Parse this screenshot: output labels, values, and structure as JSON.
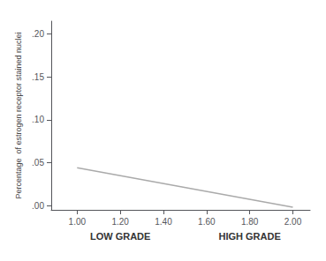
{
  "chart_data": {
    "type": "line",
    "ylabel": "Percentage  of estrogen receptor stained nuclei",
    "x": [
      1.0,
      2.0
    ],
    "values": [
      0.044,
      -0.002
    ],
    "color": "#aaaaaa",
    "xlim": [
      0.88,
      2.08
    ],
    "ylim": [
      -0.005,
      0.215
    ],
    "xticks": [
      {
        "value": 1.0,
        "label": "1.00"
      },
      {
        "value": 1.2,
        "label": "1.20"
      },
      {
        "value": 1.4,
        "label": "1.40"
      },
      {
        "value": 1.6,
        "label": "1.60"
      },
      {
        "value": 1.8,
        "label": "1.80"
      },
      {
        "value": 2.0,
        "label": "2.00"
      }
    ],
    "yticks": [
      {
        "value": 0.0,
        "label": ".00"
      },
      {
        "value": 0.05,
        "label": ".05"
      },
      {
        "value": 0.1,
        "label": ".10"
      },
      {
        "value": 0.15,
        "label": ".15"
      },
      {
        "value": 0.2,
        "label": ".20"
      }
    ],
    "annotations": [
      {
        "text": "LOW GRADE",
        "x": 1.2
      },
      {
        "text": "HIGH GRADE",
        "x": 1.8
      }
    ],
    "grid": false
  }
}
